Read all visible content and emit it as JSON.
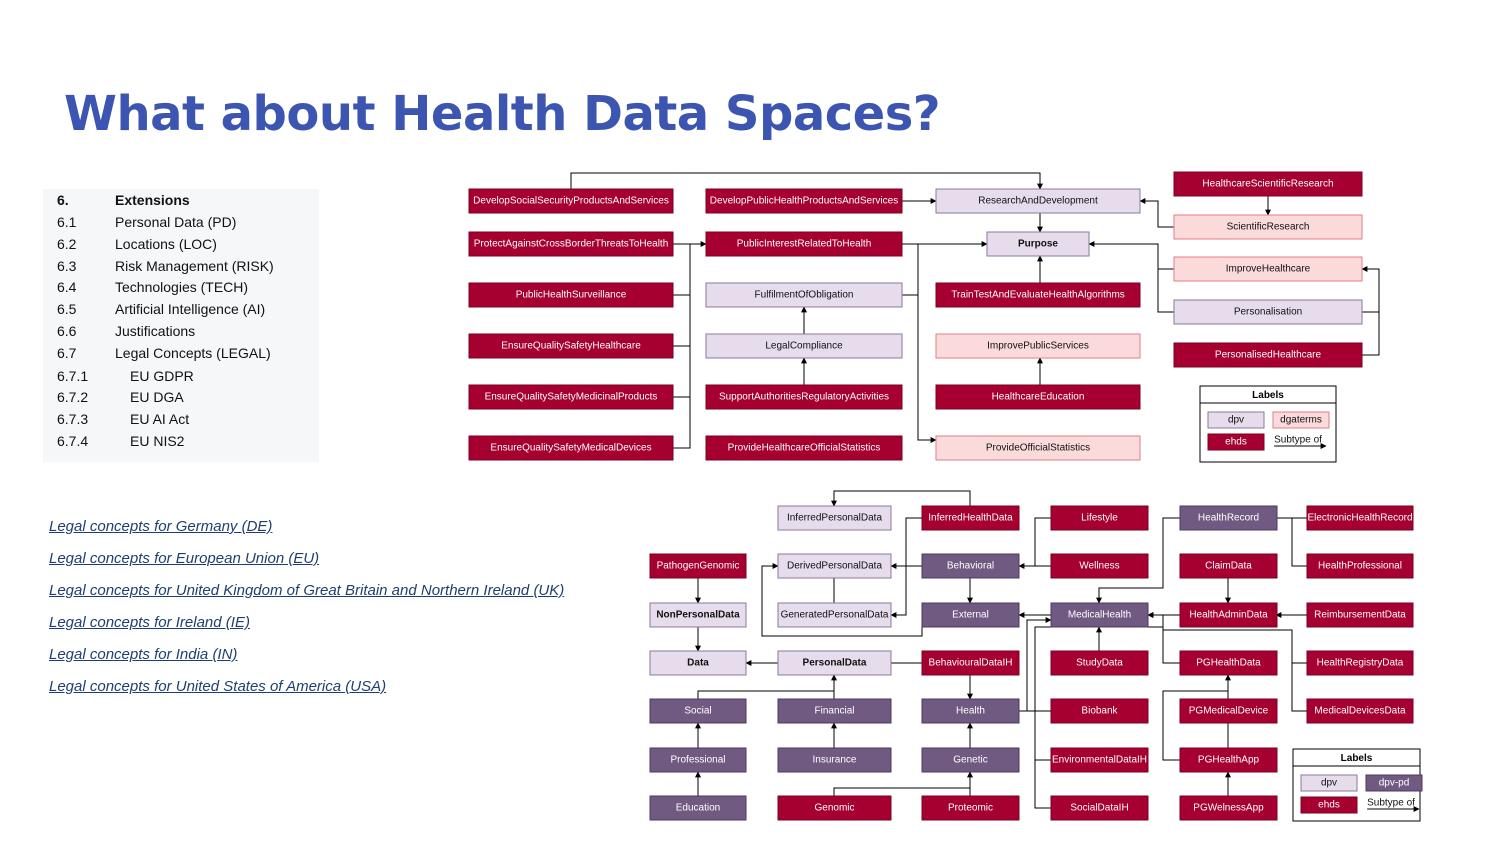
{
  "title": "What about Health Data Spaces?",
  "toc": [
    {
      "num": "6.",
      "label": "Extensions",
      "bold": true
    },
    {
      "num": "6.1",
      "label": "Personal Data (PD)"
    },
    {
      "num": "6.2",
      "label": "Locations (LOC)"
    },
    {
      "num": "6.3",
      "label": "Risk Management (RISK)"
    },
    {
      "num": "6.4",
      "label": "Technologies (TECH)"
    },
    {
      "num": "6.5",
      "label": "Artificial Intelligence (AI)"
    },
    {
      "num": "6.6",
      "label": "Justifications"
    },
    {
      "num": "6.7",
      "label": "Legal Concepts (LEGAL)"
    },
    {
      "num": "6.7.1",
      "label": "EU GDPR",
      "indent": true
    },
    {
      "num": "6.7.2",
      "label": "EU DGA",
      "indent": true
    },
    {
      "num": "6.7.3",
      "label": "EU AI Act",
      "indent": true
    },
    {
      "num": "6.7.4",
      "label": "EU NIS2",
      "indent": true
    }
  ],
  "links": [
    "Legal concepts for Germany (DE)",
    "Legal concepts for European Union (EU)",
    "Legal concepts for United Kingdom of Great Britain and Northern Ireland (UK)",
    "Legal concepts for Ireland (IE)",
    "Legal concepts for India (IN)",
    "Legal concepts for United States of America (USA)"
  ],
  "colors": {
    "ehds": "#a50030",
    "dpv": "#e6dcec",
    "dgaterms": "#fadadb",
    "dpv_pd": "#705a82",
    "edge": "#000000",
    "title": "#3c55b0"
  },
  "purpose_diagram": {
    "nodes": [
      {
        "label": "DevelopSocialSecurityProductsAndServices",
        "type": "ehds"
      },
      {
        "label": "DevelopPublicHealthProductsAndServices",
        "type": "ehds"
      },
      {
        "label": "ResearchAndDevelopment",
        "type": "dpv"
      },
      {
        "label": "HealthcareScientificResearch",
        "type": "ehds"
      },
      {
        "label": "ScientificResearch",
        "type": "dgaterms"
      },
      {
        "label": "ProtectAgainstCrossBorderThreatsToHealth",
        "type": "ehds"
      },
      {
        "label": "PublicInterestRelatedToHealth",
        "type": "ehds"
      },
      {
        "label": "Purpose",
        "type": "dpv",
        "bold": true
      },
      {
        "label": "ImproveHealthcare",
        "type": "dgaterms"
      },
      {
        "label": "PublicHealthSurveillance",
        "type": "ehds"
      },
      {
        "label": "FulfilmentOfObligation",
        "type": "dpv"
      },
      {
        "label": "TrainTestAndEvaluateHealthAlgorithms",
        "type": "ehds"
      },
      {
        "label": "Personalisation",
        "type": "dpv"
      },
      {
        "label": "EnsureQualitySafetyHealthcare",
        "type": "ehds"
      },
      {
        "label": "LegalCompliance",
        "type": "dpv"
      },
      {
        "label": "ImprovePublicServices",
        "type": "dgaterms"
      },
      {
        "label": "PersonalisedHealthcare",
        "type": "ehds"
      },
      {
        "label": "EnsureQualitySafetyMedicinalProducts",
        "type": "ehds"
      },
      {
        "label": "SupportAuthoritiesRegulatoryActivities",
        "type": "ehds"
      },
      {
        "label": "HealthcareEducation",
        "type": "ehds"
      },
      {
        "label": "EnsureQualitySafetyMedicalDevices",
        "type": "ehds"
      },
      {
        "label": "ProvideHealthcareOfficialStatistics",
        "type": "ehds"
      },
      {
        "label": "ProvideOfficialStatistics",
        "type": "dgaterms"
      }
    ],
    "legend": {
      "title": "Labels",
      "items": [
        "dpv",
        "dgaterms",
        "ehds"
      ],
      "arrow_label": "Subtype of"
    }
  },
  "data_diagram": {
    "nodes": [
      {
        "label": "InferredPersonalData",
        "type": "dpv"
      },
      {
        "label": "InferredHealthData",
        "type": "ehds"
      },
      {
        "label": "Lifestyle",
        "type": "ehds"
      },
      {
        "label": "HealthRecord",
        "type": "dpv_pd"
      },
      {
        "label": "ElectronicHealthRecord",
        "type": "ehds"
      },
      {
        "label": "PathogenGenomic",
        "type": "ehds"
      },
      {
        "label": "DerivedPersonalData",
        "type": "dpv"
      },
      {
        "label": "Behavioral",
        "type": "dpv_pd"
      },
      {
        "label": "Wellness",
        "type": "ehds"
      },
      {
        "label": "ClaimData",
        "type": "ehds"
      },
      {
        "label": "HealthProfessional",
        "type": "ehds"
      },
      {
        "label": "NonPersonalData",
        "type": "dpv",
        "bold": true
      },
      {
        "label": "GeneratedPersonalData",
        "type": "dpv"
      },
      {
        "label": "External",
        "type": "dpv_pd"
      },
      {
        "label": "MedicalHealth",
        "type": "dpv_pd"
      },
      {
        "label": "HealthAdminData",
        "type": "ehds"
      },
      {
        "label": "ReimbursementData",
        "type": "ehds"
      },
      {
        "label": "Data",
        "type": "dpv",
        "bold": true
      },
      {
        "label": "PersonalData",
        "type": "dpv",
        "bold": true
      },
      {
        "label": "BehaviouralDataIH",
        "type": "ehds"
      },
      {
        "label": "StudyData",
        "type": "ehds"
      },
      {
        "label": "PGHealthData",
        "type": "ehds"
      },
      {
        "label": "HealthRegistryData",
        "type": "ehds"
      },
      {
        "label": "Social",
        "type": "dpv_pd"
      },
      {
        "label": "Financial",
        "type": "dpv_pd"
      },
      {
        "label": "Health",
        "type": "dpv_pd"
      },
      {
        "label": "Biobank",
        "type": "ehds"
      },
      {
        "label": "PGMedicalDevice",
        "type": "ehds"
      },
      {
        "label": "MedicalDevicesData",
        "type": "ehds"
      },
      {
        "label": "Professional",
        "type": "dpv_pd"
      },
      {
        "label": "Insurance",
        "type": "dpv_pd"
      },
      {
        "label": "Genetic",
        "type": "dpv_pd"
      },
      {
        "label": "EnvironmentalDataIH",
        "type": "ehds"
      },
      {
        "label": "PGHealthApp",
        "type": "ehds"
      },
      {
        "label": "Education",
        "type": "dpv_pd"
      },
      {
        "label": "Genomic",
        "type": "ehds"
      },
      {
        "label": "Proteomic",
        "type": "ehds"
      },
      {
        "label": "SocialDataIH",
        "type": "ehds"
      },
      {
        "label": "PGWelnessApp",
        "type": "ehds"
      }
    ],
    "legend": {
      "title": "Labels",
      "items": [
        "dpv",
        "dpv-pd",
        "ehds"
      ],
      "arrow_label": "Subtype of"
    }
  }
}
